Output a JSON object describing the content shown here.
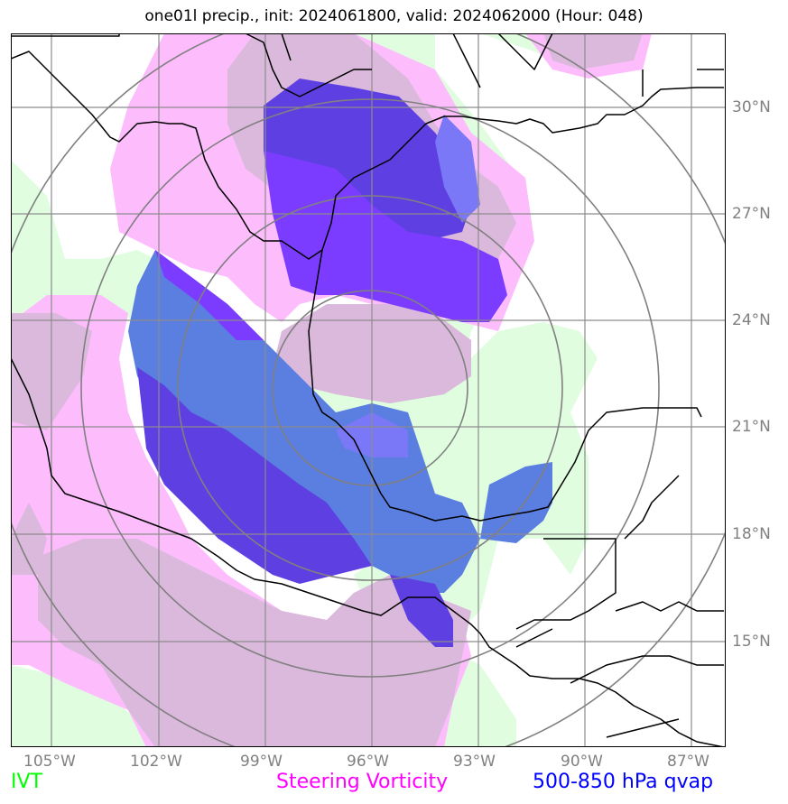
{
  "title": "one01l precip., init: 2024061800, valid: 2024062000 (Hour: 048)",
  "lat_labels": [
    "30°N",
    "27°N",
    "24°N",
    "21°N",
    "18°N",
    "15°N"
  ],
  "lon_labels": [
    "105°W",
    "102°W",
    "99°W",
    "96°W",
    "93°W",
    "90°W",
    "87°W"
  ],
  "legend": {
    "ivt": {
      "label": "IVT",
      "color": "#00ff00"
    },
    "vort": {
      "label": "Steering Vorticity",
      "color": "#ff00ff"
    },
    "qvap": {
      "label": "500-850 hPa qvap",
      "color": "#0000ff"
    }
  },
  "colors": {
    "ivt_fill": "#e0fde0",
    "vort_light": "#fdbdfd",
    "vort_mauve": "#dbb9dc",
    "qvap_blue": "#5b7fe0",
    "qvap_purple": "#5d3fe2",
    "qvap_violet": "#7c3cff",
    "qvap_periwinkle": "#7b78f8",
    "grid": "#8c8c8c",
    "coast": "#000000"
  }
}
